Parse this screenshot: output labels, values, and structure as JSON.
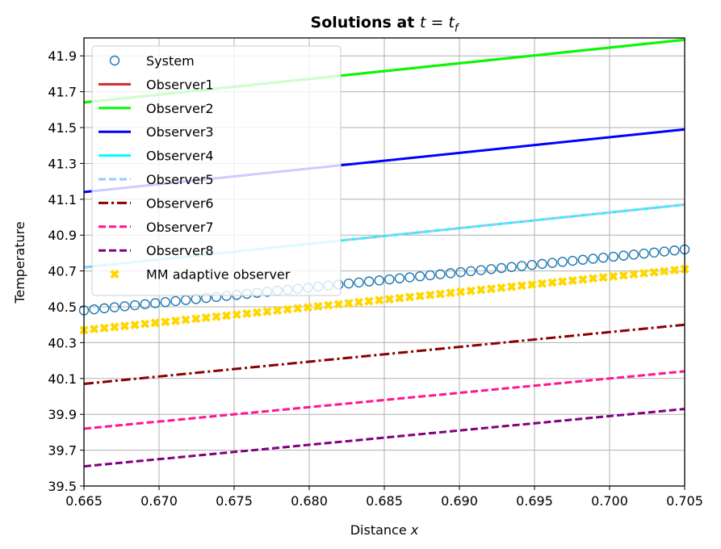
{
  "chart_data": {
    "type": "line",
    "title_prefix": "Solutions at ",
    "title_math": "t = t",
    "title_sub": "f",
    "xlabel_prefix": "Distance ",
    "xlabel_var": "x",
    "ylabel": "Temperature",
    "xlim": [
      0.665,
      0.705
    ],
    "ylim": [
      39.5,
      42.0
    ],
    "xticks": [
      "0.665",
      "0.670",
      "0.675",
      "0.680",
      "0.685",
      "0.690",
      "0.695",
      "0.700",
      "0.705"
    ],
    "yticks": [
      "39.5",
      "39.7",
      "39.9",
      "40.1",
      "40.3",
      "40.5",
      "40.7",
      "40.9",
      "41.1",
      "41.3",
      "41.5",
      "41.7",
      "41.9"
    ],
    "grid": true,
    "legend_position": "upper-left",
    "series": [
      {
        "name": "System",
        "style": "open-circle",
        "color": "#1f77b4",
        "x_start": 0.665,
        "x_end": 0.705,
        "y_start": 40.48,
        "y_end": 40.82,
        "count": 60
      },
      {
        "name": "Observer1",
        "style": "solid",
        "color": "#d62728",
        "x_start": 0.665,
        "x_end": 0.705,
        "y_start": 41.64,
        "y_end": 41.99
      },
      {
        "name": "Observer2",
        "style": "solid",
        "color": "#00ff00",
        "x_start": 0.665,
        "x_end": 0.705,
        "y_start": 41.64,
        "y_end": 41.99
      },
      {
        "name": "Observer3",
        "style": "solid",
        "color": "#0000ff",
        "x_start": 0.665,
        "x_end": 0.705,
        "y_start": 41.14,
        "y_end": 41.49
      },
      {
        "name": "Observer4",
        "style": "solid",
        "color": "#00ffff",
        "x_start": 0.665,
        "x_end": 0.705,
        "y_start": 40.72,
        "y_end": 41.07
      },
      {
        "name": "Observer5",
        "style": "dashed",
        "color": "#99ccee",
        "x_start": 0.665,
        "x_end": 0.705,
        "y_start": 40.72,
        "y_end": 41.07
      },
      {
        "name": "Observer6",
        "style": "dashdot",
        "color": "#8b0000",
        "x_start": 0.665,
        "x_end": 0.705,
        "y_start": 40.07,
        "y_end": 40.4
      },
      {
        "name": "Observer7",
        "style": "dashed",
        "color": "#ff1493",
        "x_start": 0.665,
        "x_end": 0.705,
        "y_start": 39.82,
        "y_end": 40.14
      },
      {
        "name": "Observer8",
        "style": "dashed",
        "color": "#800080",
        "x_start": 0.665,
        "x_end": 0.705,
        "y_start": 39.61,
        "y_end": 39.93
      },
      {
        "name": "MM adaptive observer",
        "style": "x-marker",
        "color": "#ffd700",
        "x_start": 0.665,
        "x_end": 0.705,
        "y_start": 40.37,
        "y_end": 40.71,
        "count": 60
      }
    ]
  }
}
